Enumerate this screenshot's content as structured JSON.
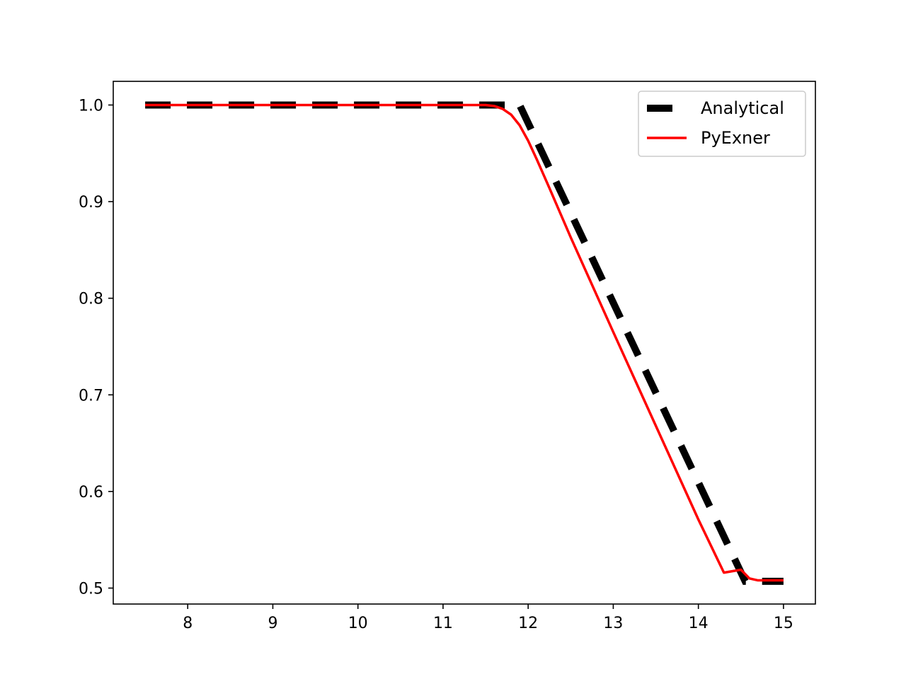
{
  "chart_data": {
    "type": "line",
    "title": "",
    "xlabel": "",
    "ylabel": "",
    "xlim": [
      7.125,
      15.375
    ],
    "ylim": [
      0.4835,
      1.0245
    ],
    "xticks": [
      8,
      9,
      10,
      11,
      12,
      13,
      14,
      15
    ],
    "xtick_labels": [
      "8",
      "9",
      "10",
      "11",
      "12",
      "13",
      "14",
      "15"
    ],
    "yticks": [
      0.5,
      0.6,
      0.7,
      0.8,
      0.9,
      1.0
    ],
    "ytick_labels": [
      "0.5",
      "0.6",
      "0.7",
      "0.8",
      "0.9",
      "1.0"
    ],
    "grid": false,
    "legend_position": "upper right",
    "series": [
      {
        "name": "Analytical",
        "color": "#000000",
        "style": "dashed",
        "x": [
          7.5,
          11.75,
          11.9,
          14.55,
          14.6,
          15.0
        ],
        "y": [
          1.0,
          1.0,
          1.0,
          0.507,
          0.507,
          0.507
        ]
      },
      {
        "name": "PyExner",
        "color": "#ff0000",
        "style": "solid",
        "x": [
          7.5,
          11.5,
          11.6,
          11.7,
          11.8,
          11.9,
          12.0,
          12.1,
          12.25,
          12.5,
          13.0,
          13.5,
          14.0,
          14.3,
          14.5,
          14.6,
          14.7,
          14.8,
          15.0
        ],
        "y": [
          1.0,
          1.0,
          0.999,
          0.996,
          0.99,
          0.979,
          0.963,
          0.944,
          0.914,
          0.863,
          0.765,
          0.668,
          0.571,
          0.516,
          0.519,
          0.51,
          0.508,
          0.508,
          0.508
        ]
      }
    ]
  }
}
